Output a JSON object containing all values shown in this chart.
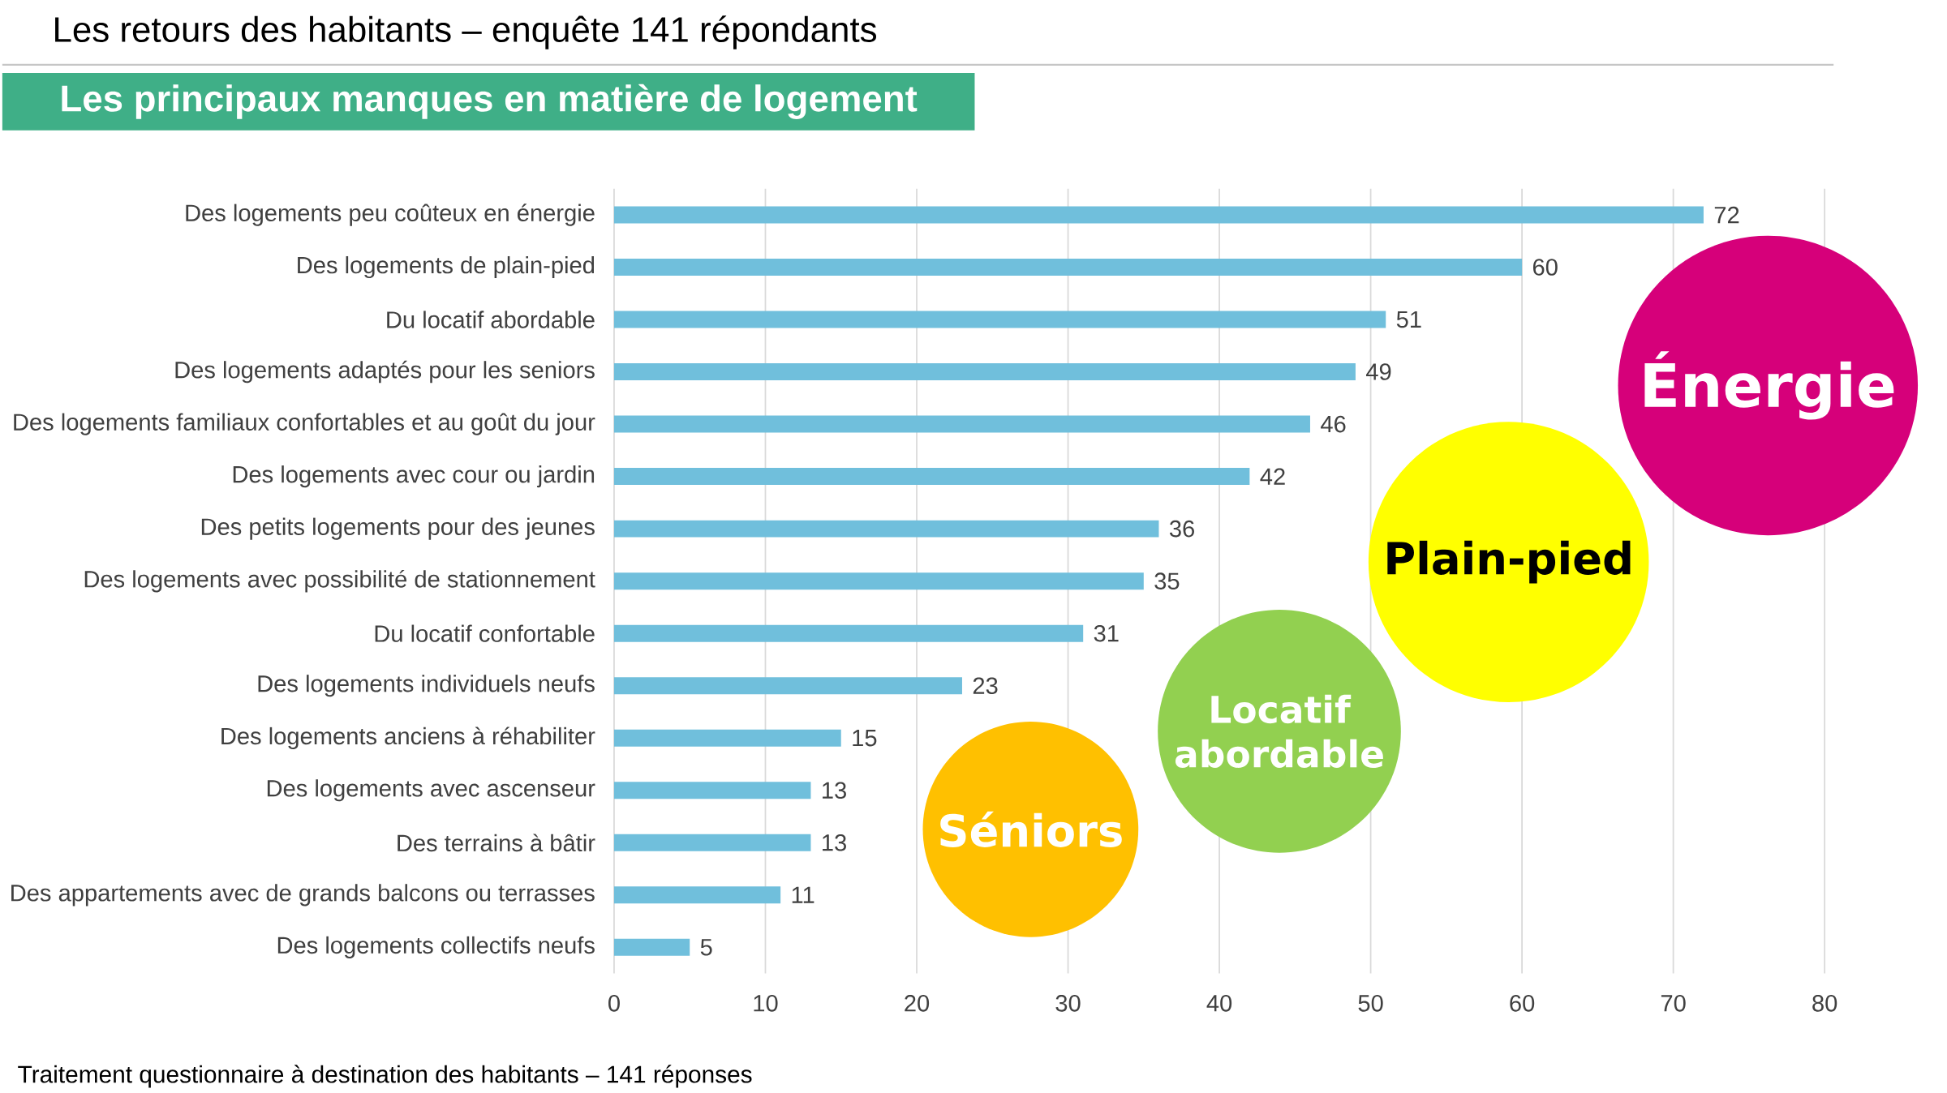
{
  "chart_data": {
    "type": "bar",
    "orientation": "horizontal",
    "title": "Les retours des habitants – enquête 141 répondants",
    "subtitle": "Les principaux manques en matière de logement",
    "categories": [
      "Des logements peu coûteux en énergie",
      "Des logements de plain-pied",
      "Du locatif abordable",
      "Des logements adaptés pour les seniors",
      "Des logements familiaux confortables et au goût du jour",
      "Des logements avec cour ou jardin",
      "Des petits logements pour des jeunes",
      "Des logements avec possibilité de stationnement",
      "Du locatif confortable",
      "Des logements individuels neufs",
      "Des logements anciens à réhabiliter",
      "Des logements avec ascenseur",
      "Des terrains à bâtir",
      "Des appartements avec de grands balcons ou terrasses",
      "Des logements collectifs neufs"
    ],
    "values": [
      72,
      60,
      51,
      49,
      46,
      42,
      36,
      35,
      31,
      23,
      15,
      13,
      13,
      11,
      5
    ],
    "color": "#70bfdc",
    "xlim": [
      0,
      80
    ],
    "xticks": [
      0,
      10,
      20,
      30,
      40,
      50,
      60,
      70,
      80
    ],
    "grid": "x",
    "data_labels": true,
    "annotations": [
      "Énergie",
      "Plain-pied",
      "Locatif abordable",
      "Séniors",
      "Traitement questionnaire à destination des habitants – 141 réponses"
    ]
  }
}
